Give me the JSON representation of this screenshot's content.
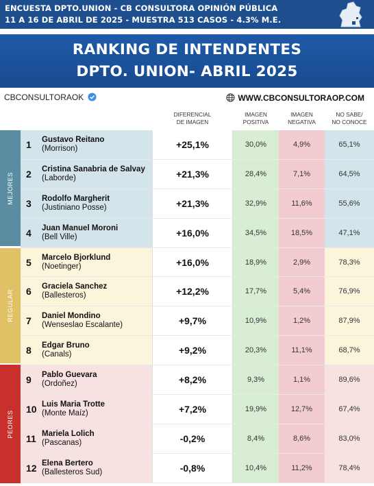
{
  "header": {
    "line1": "ENCUESTA DPTO.UNION - CB CONSULTORA OPINIÓN PÚBLICA",
    "line2": "11 A 16 DE ABRIL  DE 2025 - MUESTRA 513 CASOS - 4.3% M.E."
  },
  "title": {
    "line1": "RANKING DE INTENDENTES",
    "line2": "DPTO. UNION- ABRIL 2025"
  },
  "brand": "CBCONSULTORAOK",
  "website": "WWW.CBCONSULTORAOP.COM",
  "columns": {
    "differential": [
      "DIFERENCIAL",
      "DE IMAGEN"
    ],
    "positive": [
      "IMAGEN",
      "POSITIVA"
    ],
    "negative": [
      "IMAGEN",
      "NEGATIVA"
    ],
    "unknown": [
      "NO SABE/",
      "NO CONOCE"
    ]
  },
  "groups": {
    "best": "MEJORES",
    "regular": "REGULAR",
    "worst": "PEORES"
  },
  "rows": [
    {
      "rank": "1",
      "name": "Gustavo Reitano",
      "place": "(Morrison)",
      "differential": "+25,1%",
      "positive": "30,0%",
      "negative": "4,9%",
      "unknown": "65,1%"
    },
    {
      "rank": "2",
      "name": "Cristina Sanabria de Salvay",
      "place": "(Laborde)",
      "differential": "+21,3%",
      "positive": "28,4%",
      "negative": "7,1%",
      "unknown": "64,5%"
    },
    {
      "rank": "3",
      "name": "Rodolfo Margherit",
      "place": "(Justiniano Posse)",
      "differential": "+21,3%",
      "positive": "32,9%",
      "negative": "11,6%",
      "unknown": "55,6%"
    },
    {
      "rank": "4",
      "name": "Juan Manuel Moroni",
      "place": "(Bell Ville)",
      "differential": "+16,0%",
      "positive": "34,5%",
      "negative": "18,5%",
      "unknown": "47,1%"
    },
    {
      "rank": "5",
      "name": "Marcelo Bjorklund",
      "place": "(Noetinger)",
      "differential": "+16,0%",
      "positive": "18,9%",
      "negative": "2,9%",
      "unknown": "78,3%"
    },
    {
      "rank": "6",
      "name": "Graciela Sanchez",
      "place": "(Ballesteros)",
      "differential": "+12,2%",
      "positive": "17,7%",
      "negative": "5,4%",
      "unknown": "76,9%"
    },
    {
      "rank": "7",
      "name": "Daniel Mondino",
      "place": "(Wenseslao Escalante)",
      "differential": "+9,7%",
      "positive": "10,9%",
      "negative": "1,2%",
      "unknown": "87,9%"
    },
    {
      "rank": "8",
      "name": "Edgar Bruno",
      "place": "(Canals)",
      "differential": "+9,2%",
      "positive": "20,3%",
      "negative": "11,1%",
      "unknown": "68,7%"
    },
    {
      "rank": "9",
      "name": "Pablo Guevara",
      "place": "(Ordoñez)",
      "differential": "+8,2%",
      "positive": "9,3%",
      "negative": "1,1%",
      "unknown": "89,6%"
    },
    {
      "rank": "10",
      "name": "Luis Maria Trotte",
      "place": "(Monte Maíz)",
      "differential": "+7,2%",
      "positive": "19,9%",
      "negative": "12,7%",
      "unknown": "67,4%"
    },
    {
      "rank": "11",
      "name": "Mariela Lolich",
      "place": "(Pascanas)",
      "differential": "-0,2%",
      "positive": "8,4%",
      "negative": "8,6%",
      "unknown": "83,0%"
    },
    {
      "rank": "12",
      "name": "Elena Bertero",
      "place": "(Ballesteros Sud)",
      "differential": "-0,8%",
      "positive": "10,4%",
      "negative": "11,2%",
      "unknown": "78,4%"
    }
  ],
  "colors": {
    "header_bg": "#1d4f8f",
    "title_bg": "#1f5aa8",
    "best": "#5a8da1",
    "regular": "#e0c166",
    "worst": "#c8312b",
    "positive_cell": "#d9ecd4",
    "negative_cell": "#f3ccd1"
  },
  "icons": [
    "map-icon",
    "verified-check-icon",
    "globe-icon"
  ]
}
